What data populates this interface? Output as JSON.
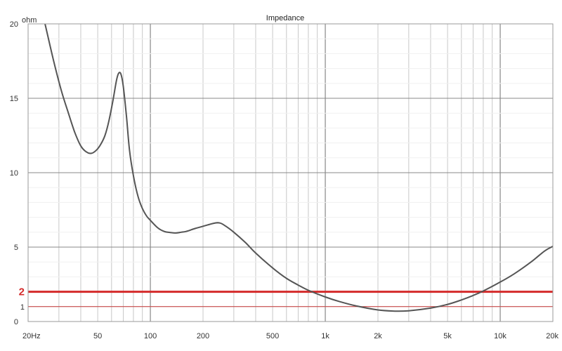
{
  "chart_data": {
    "type": "line",
    "title": "Impedance",
    "ylabel": "ohm",
    "xlabel": "",
    "x_scale": "log",
    "xlim": [
      20,
      20000
    ],
    "ylim": [
      0,
      20
    ],
    "grid": true,
    "x_ticks": [
      {
        "value": 20,
        "label": "20Hz"
      },
      {
        "value": 50,
        "label": "50"
      },
      {
        "value": 100,
        "label": "100"
      },
      {
        "value": 200,
        "label": "200"
      },
      {
        "value": 500,
        "label": "500"
      },
      {
        "value": 1000,
        "label": "1k"
      },
      {
        "value": 2000,
        "label": "2k"
      },
      {
        "value": 5000,
        "label": "5k"
      },
      {
        "value": 10000,
        "label": "10k"
      },
      {
        "value": 20000,
        "label": "20k"
      }
    ],
    "y_ticks": [
      {
        "value": 0,
        "label": "0"
      },
      {
        "value": 5,
        "label": "5"
      },
      {
        "value": 10,
        "label": "10"
      },
      {
        "value": 15,
        "label": "15"
      },
      {
        "value": 20,
        "label": "20"
      }
    ],
    "reference_lines": [
      {
        "value": 2,
        "label": "2",
        "color": "#d42a2a",
        "weight": "bold"
      },
      {
        "value": 1,
        "label": "1",
        "color": "#c03030",
        "weight": "thin"
      }
    ],
    "colors": {
      "curve": "#555555",
      "grid": "#c8c8c8",
      "grid_major": "#888888"
    },
    "series": [
      {
        "x": [
          25,
          28,
          31,
          34,
          37,
          40,
          43,
          46,
          49,
          52,
          55,
          58,
          61,
          64,
          66,
          68,
          70,
          73,
          76,
          80,
          85,
          90,
          95,
          100,
          110,
          120,
          130,
          140,
          150,
          160,
          180,
          200,
          230,
          250,
          270,
          300,
          350,
          400,
          500,
          600,
          700,
          800,
          1000,
          1200,
          1500,
          2000,
          2500,
          3000,
          4000,
          5000,
          6000,
          7000,
          8000,
          10000,
          12000,
          15000,
          18000,
          20000
        ],
        "y": [
          20,
          17.5,
          15.5,
          14,
          12.7,
          11.8,
          11.4,
          11.3,
          11.5,
          11.9,
          12.5,
          13.5,
          14.8,
          16.2,
          16.7,
          16.6,
          15.8,
          13.8,
          11.5,
          9.8,
          8.4,
          7.6,
          7.1,
          6.8,
          6.3,
          6.05,
          5.98,
          5.95,
          6.0,
          6.05,
          6.25,
          6.4,
          6.6,
          6.62,
          6.4,
          6.0,
          5.3,
          4.6,
          3.6,
          2.9,
          2.45,
          2.1,
          1.65,
          1.35,
          1.05,
          0.78,
          0.7,
          0.72,
          0.9,
          1.15,
          1.45,
          1.75,
          2.05,
          2.65,
          3.2,
          4.0,
          4.75,
          5.05
        ]
      }
    ]
  }
}
